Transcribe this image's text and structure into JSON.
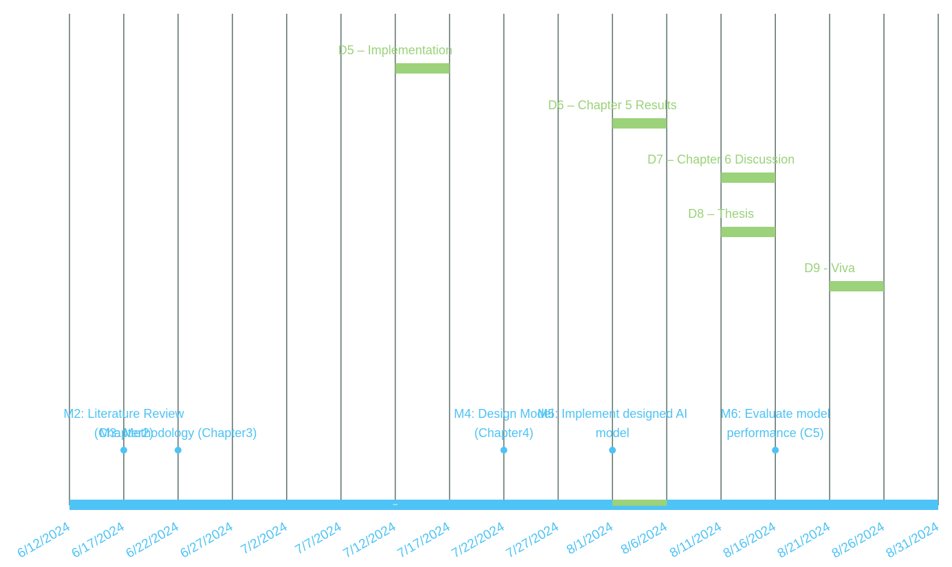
{
  "colors": {
    "gridline": "#5a6e68",
    "axis": "#4ec3f5",
    "deliverable": "#9bd27a",
    "milestone": "#4ec3f5"
  },
  "chart_data": {
    "type": "timeline",
    "x_axis": {
      "start": "2024-06-12",
      "end": "2024-08-31",
      "tick_interval_days": 5,
      "tick_labels": [
        "6/12/2024",
        "6/17/2024",
        "6/22/2024",
        "6/27/2024",
        "7/2/2024",
        "7/7/2024",
        "7/12/2024",
        "7/17/2024",
        "7/22/2024",
        "7/27/2024",
        "8/1/2024",
        "8/6/2024",
        "8/11/2024",
        "8/16/2024",
        "8/21/2024",
        "8/26/2024",
        "8/31/2024"
      ],
      "grid": true
    },
    "deliverables": [
      {
        "label": "D5 – Implementation",
        "start": "2024-07-12",
        "end": "2024-07-17"
      },
      {
        "label": "D6 – Chapter 5 Results",
        "start": "2024-08-01",
        "end": "2024-08-06"
      },
      {
        "label": "D7 – Chapter 6 Discussion",
        "start": "2024-08-11",
        "end": "2024-08-16"
      },
      {
        "label": "D8 – Thesis",
        "start": "2024-08-11",
        "end": "2024-08-16"
      },
      {
        "label": "D9 - Viva",
        "start": "2024-08-21",
        "end": "2024-08-26"
      }
    ],
    "milestones": [
      {
        "label_lines": [
          "M2: Literature Review",
          "(Chapter2)"
        ],
        "date": "2024-06-17"
      },
      {
        "label_lines": [
          "M3: Methodology (Chapter3)"
        ],
        "date": "2024-06-22"
      },
      {
        "label_lines": [
          "M4: Design Model",
          "(Chapter4)"
        ],
        "date": "2024-07-22"
      },
      {
        "label_lines": [
          "M5: Implement designed AI",
          "model"
        ],
        "date": "2024-08-01"
      },
      {
        "label_lines": [
          "M6: Evaluate model",
          "performance (C5)"
        ],
        "date": "2024-08-16"
      }
    ],
    "axis_highlights": [
      {
        "start": "2024-08-01",
        "end": "2024-08-06"
      }
    ],
    "axis_marker": "–"
  }
}
